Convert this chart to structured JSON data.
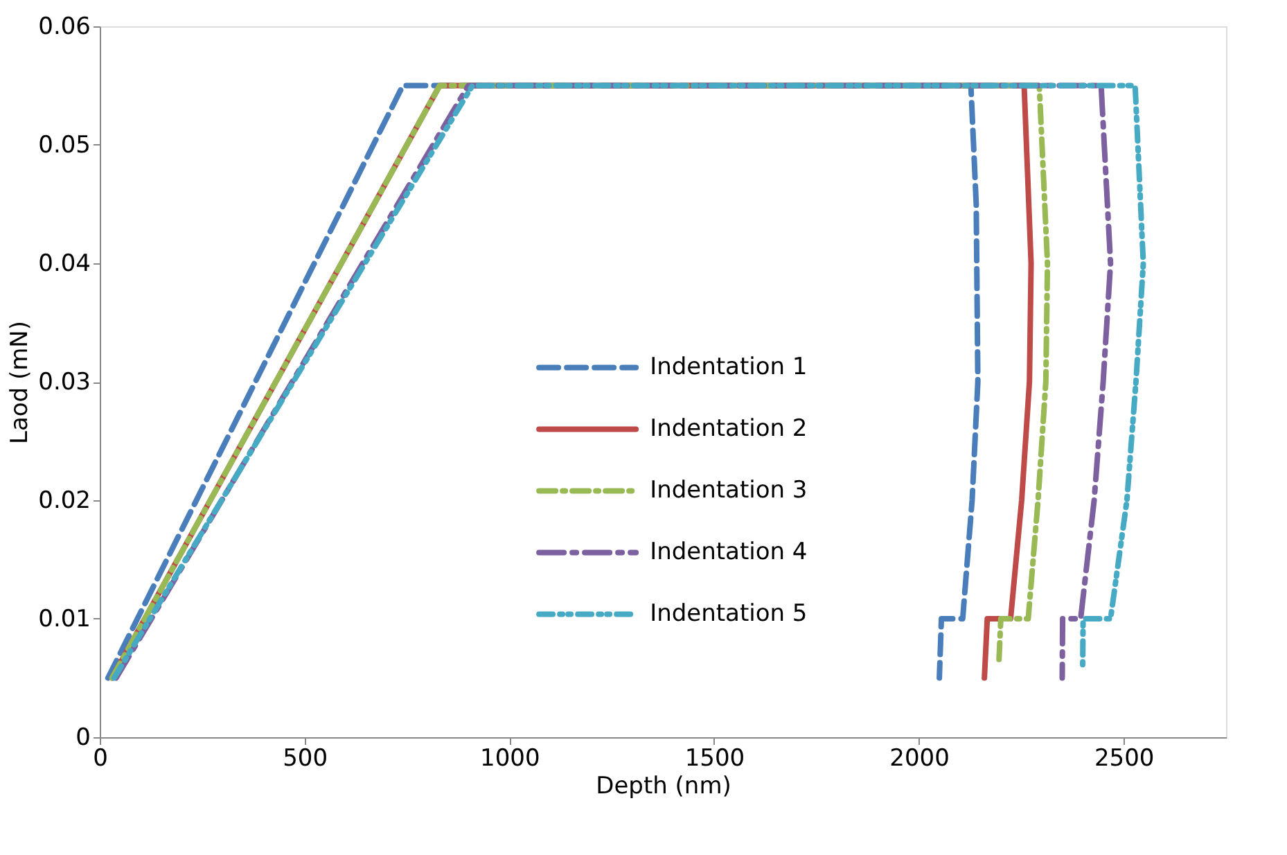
{
  "chart_data": {
    "type": "line",
    "xlabel": "Depth (nm)",
    "ylabel": "Laod (mN)",
    "xlim": [
      0,
      2750
    ],
    "xticks": [
      0,
      500,
      1000,
      1500,
      2000,
      2500
    ],
    "ylim": [
      0,
      0.06
    ],
    "yticks": [
      0,
      0.01,
      0.02,
      0.03,
      0.04,
      0.05,
      0.06
    ],
    "grid": false,
    "legend": "right",
    "marker": "none",
    "series": [
      {
        "name": "Indentation 1",
        "color": "#4a7ebb",
        "line_style": "dashed",
        "x": [
          20,
          740,
          2127,
          2140,
          2144,
          2130,
          2107,
          2055,
          2050
        ],
        "values": [
          0.005,
          0.055,
          0.055,
          0.045,
          0.03,
          0.02,
          0.01,
          0.01,
          0.005
        ]
      },
      {
        "name": "Indentation 2",
        "color": "#be4b48",
        "line_style": "solid",
        "x": [
          30,
          830,
          2257,
          2274,
          2270,
          2251,
          2224,
          2167,
          2160
        ],
        "values": [
          0.005,
          0.055,
          0.055,
          0.04,
          0.03,
          0.02,
          0.01,
          0.01,
          0.005
        ]
      },
      {
        "name": "Indentation 3",
        "color": "#98b954",
        "line_style": "dashed",
        "x": [
          30,
          830,
          2294,
          2314,
          2310,
          2291,
          2267,
          2200,
          2195
        ],
        "values": [
          0.005,
          0.055,
          0.055,
          0.04,
          0.03,
          0.02,
          0.01,
          0.01,
          0.006
        ]
      },
      {
        "name": "Indentation 4",
        "color": "#7d60a0",
        "line_style": "dashed",
        "x": [
          40,
          900,
          2445,
          2468,
          2450,
          2428,
          2395,
          2351,
          2350
        ],
        "values": [
          0.005,
          0.055,
          0.055,
          0.04,
          0.03,
          0.02,
          0.01,
          0.01,
          0.005
        ]
      },
      {
        "name": "Indentation 5",
        "color": "#46aac5",
        "line_style": "dashed",
        "x": [
          35,
          910,
          2528,
          2548,
          2530,
          2508,
          2468,
          2401,
          2400
        ],
        "values": [
          0.005,
          0.055,
          0.055,
          0.04,
          0.03,
          0.02,
          0.01,
          0.01,
          0.006
        ]
      }
    ]
  }
}
